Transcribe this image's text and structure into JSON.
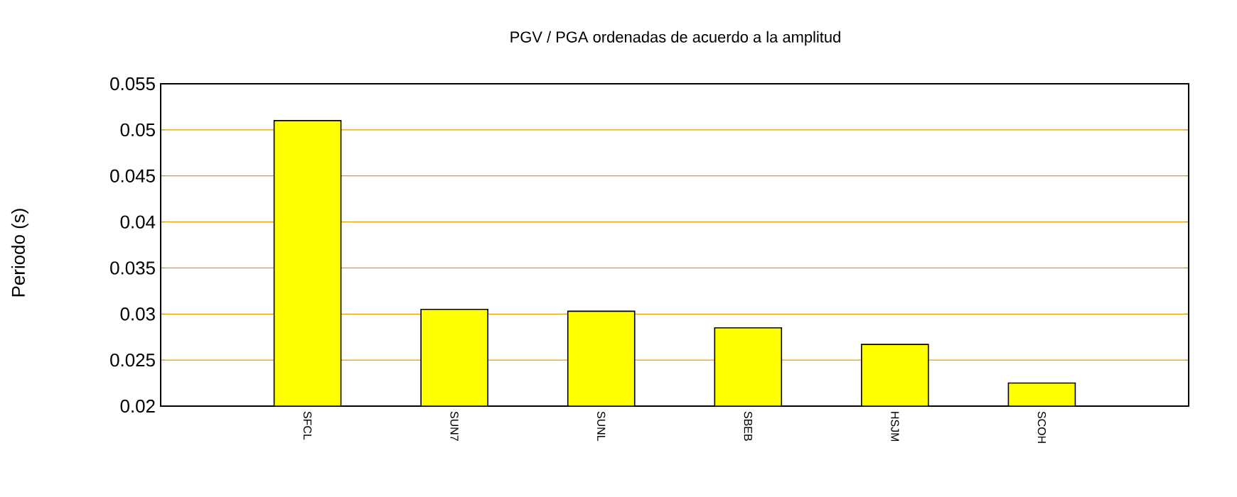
{
  "chart_data": {
    "type": "bar",
    "title": "PGV / PGA ordenadas de acuerdo a la amplitud",
    "ylabel": "Periodo (s)",
    "categories": [
      "SFCL",
      "SUN7",
      "SUNL",
      "SBEB",
      "HSJM",
      "SCOH"
    ],
    "values": [
      0.051,
      0.0305,
      0.0303,
      0.0285,
      0.0267,
      0.0225
    ],
    "color": "#ffff00",
    "ylim": [
      0.02,
      0.055
    ],
    "yticks": [
      0.02,
      0.025,
      0.03,
      0.035,
      0.04,
      0.045,
      0.05,
      0.055
    ],
    "grid": "y"
  }
}
